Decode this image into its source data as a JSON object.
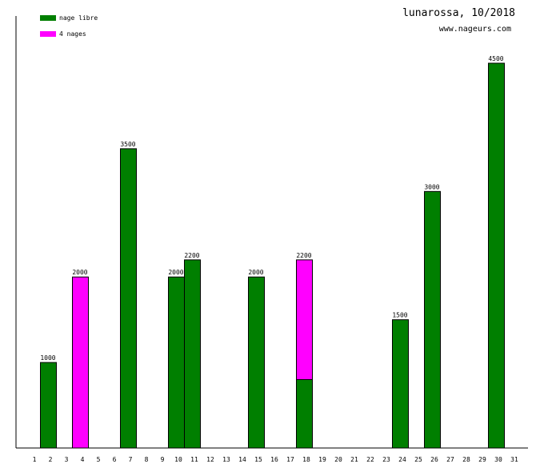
{
  "header": {
    "title": "lunarossa, 10/2018",
    "site": "www.nageurs.com"
  },
  "colors": {
    "nage_libre": "#007f00",
    "quatre_nages": "#ff00ff",
    "axis": "#000000"
  },
  "chart_data": {
    "type": "bar",
    "stacked": true,
    "title": "lunarossa, 10/2018",
    "categories": [
      "1",
      "2",
      "3",
      "4",
      "5",
      "6",
      "7",
      "8",
      "9",
      "10",
      "11",
      "12",
      "13",
      "14",
      "15",
      "16",
      "17",
      "18",
      "19",
      "20",
      "21",
      "22",
      "23",
      "24",
      "25",
      "26",
      "27",
      "28",
      "29",
      "30",
      "31"
    ],
    "series": [
      {
        "name": "nage libre",
        "color": "#007f00",
        "values": [
          0,
          1000,
          0,
          0,
          0,
          0,
          3500,
          0,
          0,
          2000,
          2200,
          0,
          0,
          0,
          2000,
          0,
          0,
          800,
          0,
          0,
          0,
          0,
          0,
          1500,
          0,
          3000,
          0,
          0,
          0,
          4500,
          0
        ]
      },
      {
        "name": "4 nages",
        "color": "#ff00ff",
        "values": [
          0,
          0,
          0,
          2000,
          0,
          0,
          0,
          0,
          0,
          0,
          0,
          0,
          0,
          0,
          0,
          0,
          0,
          1400,
          0,
          0,
          0,
          0,
          0,
          0,
          0,
          0,
          0,
          0,
          0,
          0,
          0
        ]
      }
    ],
    "totals": [
      0,
      1000,
      0,
      2000,
      0,
      0,
      3500,
      0,
      0,
      2000,
      2200,
      0,
      0,
      0,
      2000,
      0,
      0,
      2200,
      0,
      0,
      0,
      0,
      0,
      1500,
      0,
      3000,
      0,
      0,
      0,
      4500,
      0
    ],
    "xlabel": "",
    "ylabel": "",
    "ylim": [
      0,
      4500
    ],
    "grid": false,
    "legend": "top-left"
  }
}
